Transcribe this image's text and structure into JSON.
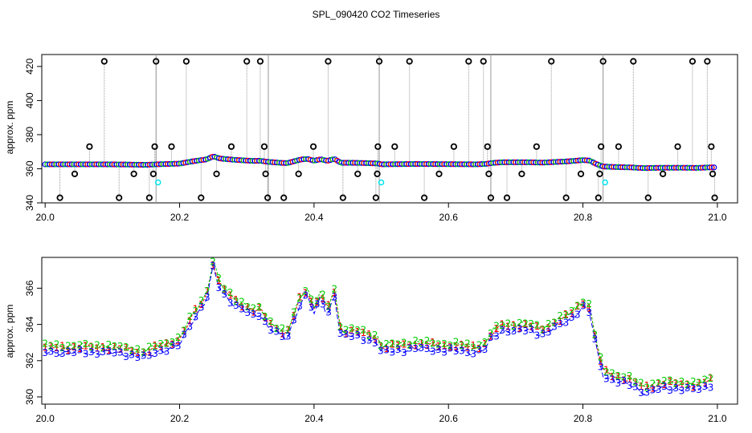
{
  "title": "SPL_090420  CO2 Timeseries",
  "colors": {
    "series1": "#0000ff",
    "series2": "#00cc00",
    "series3": "#ff0000",
    "flag": "#000000",
    "marker": "#00e5ee",
    "spike": "#999999"
  },
  "chart_data": [
    {
      "type": "scatter",
      "name": "top",
      "ylabel": "approx. ppm",
      "xlabel": "",
      "xlim": [
        19.995,
        21.03
      ],
      "ylim": [
        340,
        427
      ],
      "xticks": [
        "20.0",
        "20.2",
        "20.4",
        "20.6",
        "20.8",
        "21.0"
      ],
      "xtick_values": [
        20.0,
        20.2,
        20.4,
        20.6,
        20.8,
        21.0
      ],
      "yticks": [
        "340",
        "360",
        "380",
        "400",
        "420"
      ],
      "ytick_values": [
        340,
        360,
        380,
        400,
        420
      ],
      "gaps": [
        20.165,
        20.332,
        20.497,
        20.663,
        20.83
      ],
      "cyan_points": [
        [
          20.168,
          352
        ],
        [
          20.5,
          352
        ],
        [
          20.833,
          352
        ]
      ],
      "flagged_points": [
        [
          20.022,
          343
        ],
        [
          20.044,
          357
        ],
        [
          20.066,
          373
        ],
        [
          20.088,
          423
        ],
        [
          20.11,
          343
        ],
        [
          20.132,
          357
        ],
        [
          20.155,
          343
        ],
        [
          20.161,
          357
        ],
        [
          20.163,
          373
        ],
        [
          20.165,
          423
        ],
        [
          20.188,
          373
        ],
        [
          20.21,
          423
        ],
        [
          20.232,
          343
        ],
        [
          20.255,
          357
        ],
        [
          20.277,
          373
        ],
        [
          20.3,
          423
        ],
        [
          20.32,
          423
        ],
        [
          20.326,
          373
        ],
        [
          20.328,
          357
        ],
        [
          20.331,
          343
        ],
        [
          20.355,
          343
        ],
        [
          20.377,
          357
        ],
        [
          20.399,
          373
        ],
        [
          20.421,
          423
        ],
        [
          20.443,
          343
        ],
        [
          20.465,
          357
        ],
        [
          20.492,
          343
        ],
        [
          20.494,
          357
        ],
        [
          20.495,
          373
        ],
        [
          20.497,
          423
        ],
        [
          20.52,
          373
        ],
        [
          20.542,
          423
        ],
        [
          20.564,
          343
        ],
        [
          20.586,
          357
        ],
        [
          20.608,
          373
        ],
        [
          20.63,
          423
        ],
        [
          20.652,
          423
        ],
        [
          20.658,
          373
        ],
        [
          20.66,
          357
        ],
        [
          20.663,
          343
        ],
        [
          20.687,
          343
        ],
        [
          20.709,
          357
        ],
        [
          20.731,
          373
        ],
        [
          20.753,
          423
        ],
        [
          20.775,
          343
        ],
        [
          20.797,
          357
        ],
        [
          20.823,
          343
        ],
        [
          20.825,
          357
        ],
        [
          20.827,
          373
        ],
        [
          20.83,
          423
        ],
        [
          20.853,
          373
        ],
        [
          20.875,
          423
        ],
        [
          20.897,
          343
        ],
        [
          20.919,
          357
        ],
        [
          20.941,
          373
        ],
        [
          20.963,
          423
        ],
        [
          20.985,
          423
        ],
        [
          20.991,
          373
        ],
        [
          20.993,
          357
        ],
        [
          20.996,
          343
        ]
      ]
    },
    {
      "type": "line",
      "name": "bottom",
      "ylabel": "approx. ppm",
      "xlabel": "",
      "xlim": [
        19.995,
        21.03
      ],
      "ylim": [
        359.6,
        367.7
      ],
      "xticks": [
        "20.0",
        "20.2",
        "20.4",
        "20.6",
        "20.8",
        "21.0"
      ],
      "xtick_values": [
        20.0,
        20.2,
        20.4,
        20.6,
        20.8,
        21.0
      ],
      "yticks": [
        "360",
        "362",
        "364",
        "366"
      ],
      "ytick_values": [
        360,
        362,
        364,
        366
      ],
      "point_labels": [
        "1",
        "2",
        "3"
      ],
      "series": [
        {
          "name": "1",
          "offset": 0.12
        },
        {
          "name": "2",
          "offset": 0.22
        },
        {
          "name": "3",
          "offset": -0.15
        }
      ],
      "profile_x": [
        20.0,
        20.03,
        20.06,
        20.09,
        20.12,
        20.15,
        20.165,
        20.2,
        20.22,
        20.24,
        20.25,
        20.26,
        20.28,
        20.3,
        20.31,
        20.32,
        20.33,
        20.35,
        20.36,
        20.38,
        20.39,
        20.4,
        20.41,
        20.42,
        20.43,
        20.44,
        20.46,
        20.48,
        20.495,
        20.5,
        20.55,
        20.6,
        20.64,
        20.655,
        20.665,
        20.68,
        20.7,
        20.72,
        20.74,
        20.76,
        20.78,
        20.8,
        20.81,
        20.82,
        20.83,
        20.85,
        20.87,
        20.89,
        20.92,
        20.95,
        20.97,
        20.99
      ],
      "profile_y": [
        362.6,
        362.6,
        362.6,
        362.6,
        362.5,
        362.3,
        362.6,
        363.0,
        364.4,
        365.5,
        367.3,
        366.0,
        365.3,
        364.8,
        364.6,
        364.7,
        364.1,
        363.5,
        363.3,
        365.4,
        365.8,
        364.7,
        365.6,
        364.6,
        365.8,
        363.5,
        363.5,
        363.3,
        363.1,
        362.6,
        362.8,
        362.7,
        362.6,
        362.8,
        363.4,
        363.8,
        363.8,
        363.8,
        363.6,
        364.0,
        364.4,
        365.1,
        364.8,
        362.8,
        361.3,
        361.0,
        360.8,
        360.4,
        360.6,
        360.6,
        360.5,
        360.8
      ]
    }
  ]
}
